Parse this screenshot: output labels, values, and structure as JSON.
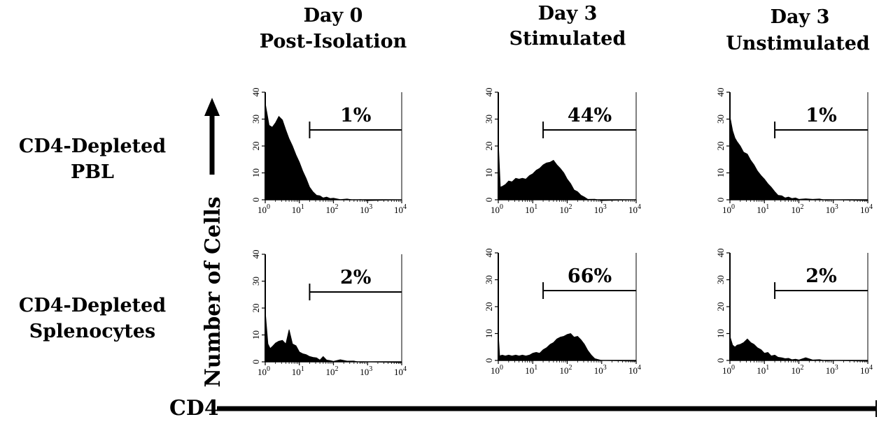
{
  "columns": [
    {
      "line1": "Day 0",
      "line2": "Post-Isolation"
    },
    {
      "line1": "Day 3",
      "line2": "Stimulated"
    },
    {
      "line1": "Day 3",
      "line2": "Unstimulated"
    }
  ],
  "rows": [
    {
      "line1": "CD4-Depleted",
      "line2": "PBL"
    },
    {
      "line1": "CD4-Depleted",
      "line2": "Splenocytes"
    }
  ],
  "y_axis_label": "Number of Cells",
  "x_axis_label": "CD4",
  "colors": {
    "ink": "#000000",
    "background": "#ffffff"
  },
  "chart_data": [
    {
      "type": "area",
      "row": "CD4-Depleted PBL",
      "column": "Day 0 Post-Isolation",
      "x_scale": "log",
      "xlim": [
        1,
        10000
      ],
      "ylim": [
        0,
        40
      ],
      "x_ticks": [
        "10^0",
        "10^1",
        "10^2",
        "10^3",
        "10^4"
      ],
      "y_ticks": [
        "0",
        "10",
        "20",
        "30",
        "40"
      ],
      "gate_label": "1%",
      "gate_start": 20,
      "x": [
        1,
        1.3,
        1.6,
        2,
        2.5,
        3.2,
        4,
        5,
        6.3,
        8,
        10,
        12.6,
        15.8,
        20,
        25,
        32,
        40,
        50,
        63,
        80,
        100,
        158,
        251,
        398,
        631,
        1000,
        10000
      ],
      "y": [
        36,
        28,
        27,
        29,
        31,
        30,
        26,
        23,
        20,
        17,
        14,
        11,
        8,
        5,
        3,
        2,
        1.5,
        1,
        1,
        0.8,
        0.6,
        0.4,
        0.3,
        0.2,
        0.1,
        0,
        0
      ]
    },
    {
      "type": "area",
      "row": "CD4-Depleted PBL",
      "column": "Day 3 Stimulated",
      "x_scale": "log",
      "xlim": [
        1,
        10000
      ],
      "ylim": [
        0,
        40
      ],
      "x_ticks": [
        "10^0",
        "10^1",
        "10^2",
        "10^3",
        "10^4"
      ],
      "y_ticks": [
        "0",
        "10",
        "20",
        "30",
        "40"
      ],
      "gate_label": "44%",
      "gate_start": 20,
      "x": [
        1,
        1.15,
        1.3,
        1.6,
        2,
        2.5,
        3.2,
        4,
        5,
        6.3,
        8,
        10,
        12.6,
        15.8,
        20,
        25,
        32,
        40,
        50,
        63,
        80,
        100,
        126,
        158,
        200,
        251,
        316,
        398,
        631,
        1000,
        10000
      ],
      "y": [
        22,
        5,
        5,
        6,
        7,
        7,
        8,
        8,
        8,
        8,
        9,
        10,
        11,
        12,
        13,
        14,
        14,
        15,
        13,
        12,
        10,
        8,
        6,
        4,
        3,
        2,
        1,
        0.5,
        0.2,
        0,
        0
      ]
    },
    {
      "type": "area",
      "row": "CD4-Depleted PBL",
      "column": "Day 3 Unstimulated",
      "x_scale": "log",
      "xlim": [
        1,
        10000
      ],
      "ylim": [
        0,
        40
      ],
      "x_ticks": [
        "10^0",
        "10^1",
        "10^2",
        "10^3",
        "10^4"
      ],
      "y_ticks": [
        "0",
        "10",
        "20",
        "30",
        "40"
      ],
      "gate_label": "1%",
      "gate_start": 20,
      "x": [
        1,
        1.2,
        1.4,
        1.6,
        2,
        2.5,
        3.2,
        4,
        5,
        6.3,
        8,
        10,
        12.6,
        15.8,
        20,
        25,
        32,
        40,
        50,
        63,
        80,
        100,
        158,
        251,
        398,
        631,
        1000,
        10000
      ],
      "y": [
        31,
        26,
        23,
        22,
        20,
        18,
        17,
        15,
        13,
        11,
        9,
        8,
        6,
        5,
        3,
        2,
        1.5,
        1,
        1,
        0.8,
        0.7,
        0.5,
        0.4,
        0.5,
        0.3,
        0.1,
        0,
        0
      ]
    },
    {
      "type": "area",
      "row": "CD4-Depleted Splenocytes",
      "column": "Day 0 Post-Isolation",
      "x_scale": "log",
      "xlim": [
        1,
        10000
      ],
      "ylim": [
        0,
        40
      ],
      "x_ticks": [
        "10^0",
        "10^1",
        "10^2",
        "10^3",
        "10^4"
      ],
      "y_ticks": [
        "0",
        "10",
        "20",
        "30",
        "40"
      ],
      "gate_label": "2%",
      "gate_start": 20,
      "x": [
        1,
        1.2,
        1.4,
        1.6,
        2,
        2.5,
        3.2,
        4,
        5,
        6.3,
        8,
        10,
        12.6,
        15.8,
        20,
        25,
        32,
        40,
        50,
        63,
        80,
        100,
        158,
        251,
        398,
        631,
        1000,
        10000
      ],
      "y": [
        19,
        7,
        5,
        6,
        7,
        8,
        8,
        7,
        12,
        7,
        6,
        4,
        3,
        3,
        2,
        2,
        1.5,
        1,
        2,
        1,
        0.5,
        0.5,
        0.8,
        0.6,
        0.3,
        0.1,
        0,
        0
      ]
    },
    {
      "type": "area",
      "row": "CD4-Depleted Splenocytes",
      "column": "Day 3 Stimulated",
      "x_scale": "log",
      "xlim": [
        1,
        10000
      ],
      "ylim": [
        0,
        40
      ],
      "x_ticks": [
        "10^0",
        "10^1",
        "10^2",
        "10^3",
        "10^4"
      ],
      "y_ticks": [
        "0",
        "10",
        "20",
        "30",
        "40"
      ],
      "gate_label": "66%",
      "gate_start": 20,
      "x": [
        1,
        1.1,
        1.3,
        1.6,
        2,
        2.5,
        3.2,
        4,
        5,
        6.3,
        8,
        10,
        12.6,
        15.8,
        20,
        25,
        32,
        40,
        50,
        63,
        80,
        100,
        126,
        158,
        200,
        251,
        316,
        398,
        500,
        631,
        1000,
        10000
      ],
      "y": [
        10,
        2,
        2,
        2,
        2,
        2,
        2,
        2,
        2,
        2,
        2,
        3,
        3,
        3,
        4,
        5,
        6,
        7,
        8,
        9,
        9,
        10,
        10,
        9,
        9,
        8,
        6,
        4,
        2,
        1,
        0,
        0
      ]
    },
    {
      "type": "area",
      "row": "CD4-Depleted Splenocytes",
      "column": "Day 3 Unstimulated",
      "x_scale": "log",
      "xlim": [
        1,
        10000
      ],
      "ylim": [
        0,
        40
      ],
      "x_ticks": [
        "10^0",
        "10^1",
        "10^2",
        "10^3",
        "10^4"
      ],
      "y_ticks": [
        "0",
        "10",
        "20",
        "30",
        "40"
      ],
      "gate_label": "2%",
      "gate_start": 20,
      "x": [
        1,
        1.2,
        1.4,
        1.6,
        2,
        2.5,
        3.2,
        4,
        5,
        6.3,
        8,
        10,
        12.6,
        15.8,
        20,
        25,
        32,
        40,
        50,
        63,
        80,
        100,
        158,
        251,
        398,
        631,
        1000,
        10000
      ],
      "y": [
        9,
        6,
        5,
        6,
        6,
        7,
        8,
        7,
        6,
        5,
        4,
        3,
        3,
        2,
        2,
        1.5,
        1,
        1,
        0.8,
        0.6,
        0.5,
        0.5,
        1,
        0.5,
        0.3,
        0.1,
        0,
        0
      ]
    }
  ]
}
